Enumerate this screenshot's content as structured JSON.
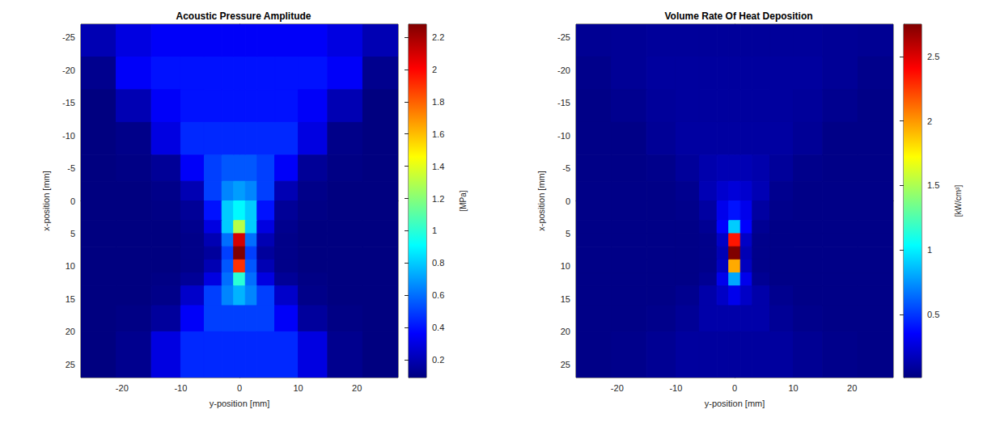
{
  "chart_data": [
    {
      "type": "heatmap",
      "title": "Acoustic Pressure Amplitude",
      "x_label": "y-position [mm]",
      "y_label": "x-position [mm]",
      "xlim": [
        -27,
        27
      ],
      "xticks": [
        -20,
        -10,
        0,
        10,
        20
      ],
      "ylim": [
        -27,
        27
      ],
      "yticks": [
        -25,
        -20,
        -15,
        -10,
        -5,
        0,
        5,
        10,
        15,
        20,
        25
      ],
      "x_edges": [
        -27,
        -21,
        -15,
        -10,
        -6,
        -3,
        -1,
        1,
        3,
        6,
        10,
        15,
        21,
        27
      ],
      "y_edges": [
        -27,
        -22,
        -17,
        -12,
        -7,
        -3,
        0,
        3,
        5,
        7,
        9,
        11,
        13,
        16,
        20,
        27
      ],
      "cells": [
        [
          0.2,
          0.3,
          0.35,
          0.35,
          0.35,
          0.35,
          0.35,
          0.35,
          0.35,
          0.35,
          0.35,
          0.3,
          0.2
        ],
        [
          0.12,
          0.35,
          0.4,
          0.4,
          0.4,
          0.4,
          0.4,
          0.4,
          0.4,
          0.4,
          0.4,
          0.35,
          0.12
        ],
        [
          0.09,
          0.2,
          0.35,
          0.4,
          0.4,
          0.4,
          0.4,
          0.4,
          0.4,
          0.4,
          0.35,
          0.2,
          0.09
        ],
        [
          0.09,
          0.11,
          0.3,
          0.45,
          0.45,
          0.45,
          0.45,
          0.45,
          0.45,
          0.45,
          0.3,
          0.11,
          0.09
        ],
        [
          0.09,
          0.1,
          0.14,
          0.35,
          0.5,
          0.55,
          0.55,
          0.55,
          0.5,
          0.35,
          0.14,
          0.1,
          0.09
        ],
        [
          0.09,
          0.09,
          0.11,
          0.2,
          0.5,
          0.65,
          0.7,
          0.65,
          0.5,
          0.2,
          0.11,
          0.09,
          0.09
        ],
        [
          0.09,
          0.09,
          0.1,
          0.14,
          0.4,
          0.8,
          0.9,
          0.8,
          0.4,
          0.14,
          0.1,
          0.09,
          0.09
        ],
        [
          0.09,
          0.09,
          0.09,
          0.12,
          0.3,
          0.8,
          1.3,
          0.8,
          0.3,
          0.12,
          0.09,
          0.09,
          0.09
        ],
        [
          0.09,
          0.09,
          0.09,
          0.11,
          0.2,
          0.6,
          2.1,
          0.6,
          0.2,
          0.11,
          0.09,
          0.09,
          0.09
        ],
        [
          0.09,
          0.09,
          0.09,
          0.11,
          0.15,
          0.5,
          2.28,
          0.5,
          0.15,
          0.11,
          0.09,
          0.09,
          0.09
        ],
        [
          0.09,
          0.09,
          0.09,
          0.11,
          0.2,
          0.55,
          1.9,
          0.55,
          0.2,
          0.11,
          0.09,
          0.09,
          0.09
        ],
        [
          0.09,
          0.09,
          0.1,
          0.14,
          0.3,
          0.6,
          1.0,
          0.6,
          0.3,
          0.14,
          0.1,
          0.09,
          0.09
        ],
        [
          0.09,
          0.09,
          0.11,
          0.25,
          0.5,
          0.65,
          0.75,
          0.65,
          0.5,
          0.25,
          0.11,
          0.09,
          0.09
        ],
        [
          0.09,
          0.1,
          0.15,
          0.35,
          0.5,
          0.5,
          0.5,
          0.5,
          0.5,
          0.35,
          0.15,
          0.1,
          0.09
        ],
        [
          0.09,
          0.12,
          0.3,
          0.45,
          0.45,
          0.45,
          0.45,
          0.45,
          0.45,
          0.45,
          0.3,
          0.12,
          0.09
        ]
      ],
      "colorbar": {
        "label": "[MPa]",
        "range": [
          0.09,
          2.28
        ],
        "ticks": [
          0.2,
          0.4,
          0.6,
          0.8,
          1,
          1.2,
          1.4,
          1.6,
          1.8,
          2,
          2.2
        ]
      }
    },
    {
      "type": "heatmap",
      "title": "Volume Rate Of Heat Deposition",
      "x_label": "y-position [mm]",
      "y_label": "x-position [mm]",
      "xlim": [
        -27,
        27
      ],
      "xticks": [
        -20,
        -10,
        0,
        10,
        20
      ],
      "ylim": [
        -27,
        27
      ],
      "yticks": [
        -25,
        -20,
        -15,
        -10,
        -5,
        0,
        5,
        10,
        15,
        20,
        25
      ],
      "x_edges": [
        -27,
        -21,
        -15,
        -10,
        -6,
        -3,
        -1,
        1,
        3,
        6,
        10,
        15,
        21,
        27
      ],
      "y_edges": [
        -27,
        -22,
        -17,
        -12,
        -7,
        -3,
        0,
        3,
        5,
        7,
        9,
        11,
        13,
        16,
        20,
        27
      ],
      "cells": [
        [
          0.06,
          0.07,
          0.08,
          0.08,
          0.08,
          0.08,
          0.08,
          0.08,
          0.08,
          0.08,
          0.08,
          0.07,
          0.06
        ],
        [
          0.04,
          0.07,
          0.09,
          0.09,
          0.09,
          0.09,
          0.09,
          0.09,
          0.09,
          0.09,
          0.09,
          0.07,
          0.04
        ],
        [
          0.03,
          0.05,
          0.08,
          0.09,
          0.09,
          0.09,
          0.09,
          0.09,
          0.09,
          0.09,
          0.08,
          0.05,
          0.03
        ],
        [
          0.03,
          0.03,
          0.07,
          0.1,
          0.1,
          0.1,
          0.1,
          0.1,
          0.1,
          0.1,
          0.07,
          0.03,
          0.03
        ],
        [
          0.03,
          0.03,
          0.04,
          0.08,
          0.13,
          0.15,
          0.15,
          0.15,
          0.13,
          0.08,
          0.04,
          0.03,
          0.03
        ],
        [
          0.03,
          0.03,
          0.03,
          0.05,
          0.15,
          0.22,
          0.25,
          0.22,
          0.15,
          0.05,
          0.03,
          0.03,
          0.03
        ],
        [
          0.03,
          0.03,
          0.03,
          0.04,
          0.1,
          0.3,
          0.4,
          0.3,
          0.1,
          0.04,
          0.03,
          0.03,
          0.03
        ],
        [
          0.03,
          0.03,
          0.03,
          0.03,
          0.06,
          0.35,
          0.9,
          0.35,
          0.06,
          0.03,
          0.03,
          0.03,
          0.03
        ],
        [
          0.03,
          0.03,
          0.03,
          0.03,
          0.04,
          0.2,
          2.35,
          0.2,
          0.04,
          0.03,
          0.03,
          0.03,
          0.03
        ],
        [
          0.03,
          0.03,
          0.03,
          0.03,
          0.04,
          0.15,
          2.75,
          0.15,
          0.04,
          0.03,
          0.03,
          0.03,
          0.03
        ],
        [
          0.03,
          0.03,
          0.03,
          0.03,
          0.04,
          0.18,
          1.95,
          0.18,
          0.04,
          0.03,
          0.03,
          0.03,
          0.03
        ],
        [
          0.03,
          0.03,
          0.03,
          0.03,
          0.06,
          0.3,
          0.8,
          0.3,
          0.06,
          0.03,
          0.03,
          0.03,
          0.03
        ],
        [
          0.03,
          0.03,
          0.03,
          0.05,
          0.12,
          0.2,
          0.3,
          0.2,
          0.12,
          0.05,
          0.03,
          0.03,
          0.03
        ],
        [
          0.03,
          0.03,
          0.04,
          0.07,
          0.12,
          0.12,
          0.12,
          0.12,
          0.12,
          0.07,
          0.04,
          0.03,
          0.03
        ],
        [
          0.03,
          0.04,
          0.06,
          0.09,
          0.09,
          0.09,
          0.09,
          0.09,
          0.09,
          0.09,
          0.06,
          0.04,
          0.03
        ]
      ],
      "colorbar": {
        "label": "[kW/cm³]",
        "range": [
          0.01,
          2.75
        ],
        "ticks": [
          0.5,
          1,
          1.5,
          2,
          2.5
        ]
      }
    }
  ]
}
